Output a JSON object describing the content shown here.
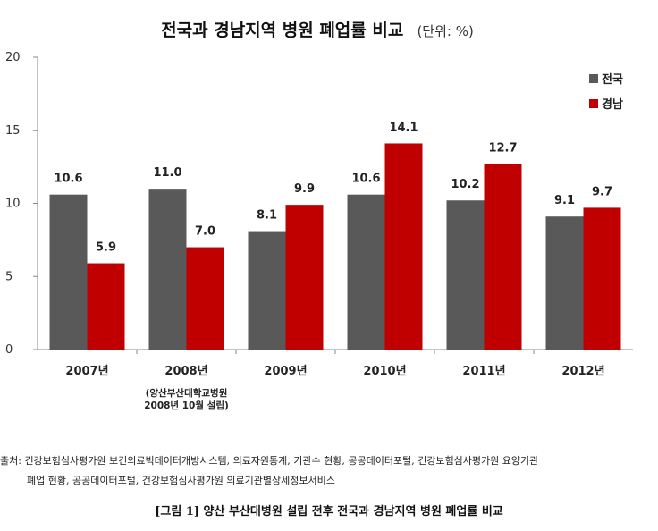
{
  "chart_data": {
    "type": "bar",
    "title": "전국과 경남지역 병원 폐업률 비교",
    "unit": "(단위: %)",
    "categories": [
      "2007년",
      "2008년",
      "2009년",
      "2010년",
      "2011년",
      "2012년"
    ],
    "category_note": {
      "index": 1,
      "lines": [
        "(양산부산대학교병원",
        "2008년 10월 설립)"
      ]
    },
    "series": [
      {
        "name": "전국",
        "color": "#595959",
        "values": [
          10.6,
          11.0,
          8.1,
          10.6,
          10.2,
          9.1
        ],
        "labels": [
          "10.6",
          "11.0",
          "8.1",
          "10.6",
          "10.2",
          "9.1"
        ]
      },
      {
        "name": "경남",
        "color": "#c00000",
        "values": [
          5.9,
          7.0,
          9.9,
          14.1,
          12.7,
          9.7
        ],
        "labels": [
          "5.9",
          "7.0",
          "9.9",
          "14.1",
          "12.7",
          "9.7"
        ]
      }
    ],
    "ylim": [
      0,
      20
    ],
    "yticks": [
      0,
      5,
      10,
      15,
      20
    ],
    "grid": false,
    "legend": "top-right"
  },
  "source": {
    "line1": "출처: 건강보험심사평가원 보건의료빅데이터개방시스템, 의료자원통계, 기관수 현황, 공공데이터포털, 건강보험심사평가원 요양기관",
    "line2": "폐업 현황, 공공데이터포털, 건강보험심사평가원 의료기관별상세정보서비스"
  },
  "caption": "[그림 1] 양산 부산대병원 설립 전후 전국과 경남지역 병원 폐업률 비교"
}
